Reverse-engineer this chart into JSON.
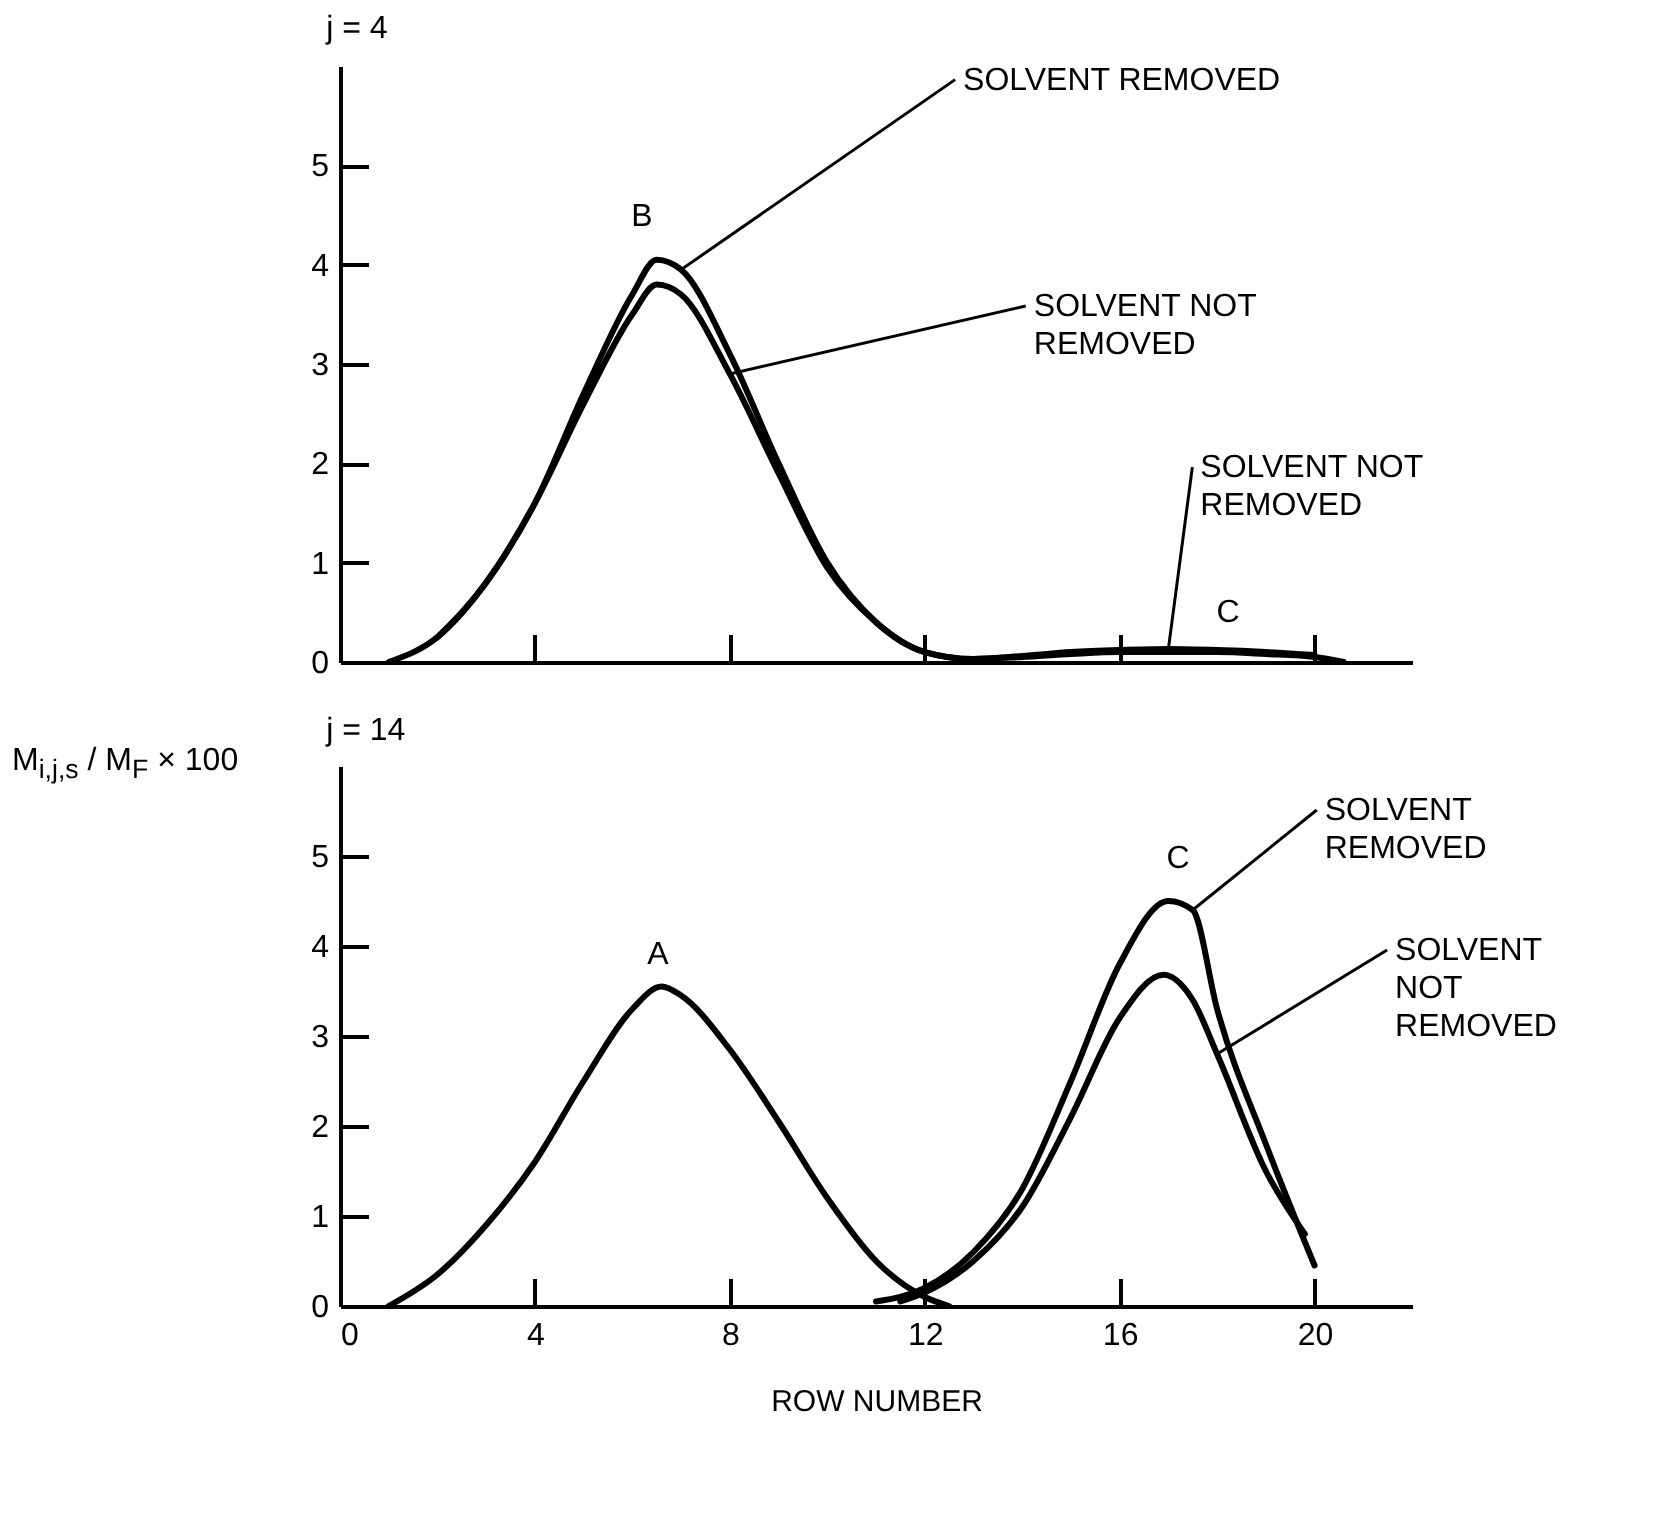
{
  "chart_data": [
    {
      "type": "line",
      "title": "j = 4",
      "ylabel": "M$_{i,j,s}$ / M$_{F}$ × 100",
      "xlim": [
        0,
        22
      ],
      "ylim": [
        0,
        6
      ],
      "xticks": [
        {
          "value": 4,
          "label": null
        },
        {
          "value": 8,
          "label": null
        },
        {
          "value": 12,
          "label": null
        },
        {
          "value": 16,
          "label": null
        },
        {
          "value": 20,
          "label": null
        }
      ],
      "yticks": [
        0,
        1,
        2,
        3,
        4,
        5
      ],
      "tick_labels": "y",
      "line_style": "solid",
      "marker": "none",
      "grid": false,
      "series": [
        {
          "color": "#000000",
          "x": [
            1,
            2,
            3,
            4,
            5,
            6,
            6.5,
            7,
            8,
            9,
            10,
            11,
            12,
            13,
            14,
            15,
            16,
            17,
            18,
            19,
            20,
            20.6
          ],
          "values": [
            0,
            0.25,
            0.8,
            1.6,
            2.7,
            3.7,
            4.05,
            3.95,
            3.1,
            2.0,
            1.0,
            0.4,
            0.1,
            0.03,
            0.05,
            0.08,
            0.1,
            0.1,
            0.1,
            0.08,
            0.05,
            0
          ]
        },
        {
          "color": "#000000",
          "x": [
            2,
            3,
            4,
            5,
            6,
            6.5,
            7,
            8,
            9,
            10,
            11,
            12,
            13,
            14,
            15,
            16,
            17,
            18,
            19,
            20
          ],
          "values": [
            0.25,
            0.8,
            1.6,
            2.6,
            3.5,
            3.8,
            3.7,
            2.9,
            1.9,
            0.95,
            0.4,
            0.1,
            0.03,
            0.06,
            0.1,
            0.12,
            0.13,
            0.12,
            0.1,
            0.07
          ]
        }
      ],
      "annotations": [
        {
          "text": "SOLVENT  REMOVED",
          "x": 7,
          "y": 3.95
        },
        {
          "text": "SOLVENT NOT\nREMOVED",
          "x": 8,
          "y": 2.9
        },
        {
          "text": "SOLVENT NOT\nREMOVED",
          "x": 17,
          "y": 0.13
        },
        "B",
        "C"
      ]
    },
    {
      "type": "line",
      "title": "j = 14",
      "xlabel": "ROW NUMBER",
      "xlim": [
        0,
        22
      ],
      "ylim": [
        0,
        6
      ],
      "xticks": [
        0,
        4,
        8,
        12,
        16,
        20
      ],
      "yticks": [
        0,
        1,
        2,
        3,
        4,
        5
      ],
      "line_style": "solid",
      "marker": "none",
      "grid": false,
      "series": [
        {
          "color": "#000000",
          "x": [
            1,
            2,
            3,
            4,
            5,
            6,
            6.6,
            7,
            8,
            9,
            10,
            11,
            12,
            12.5
          ],
          "values": [
            0,
            0.35,
            0.9,
            1.6,
            2.5,
            3.3,
            3.55,
            3.45,
            2.85,
            2.05,
            1.2,
            0.5,
            0.1,
            0
          ]
        },
        {
          "color": "#000000",
          "x": [
            11,
            12,
            13,
            14,
            15,
            16,
            17,
            17.5,
            18,
            19,
            20
          ],
          "values": [
            0.05,
            0.2,
            0.6,
            1.3,
            2.5,
            3.8,
            4.5,
            4.4,
            3.3,
            1.8,
            0.45
          ]
        },
        {
          "color": "#000000",
          "x": [
            11.5,
            12,
            13,
            14,
            15,
            16,
            16.9,
            17.5,
            18,
            19,
            19.8
          ],
          "values": [
            0.05,
            0.15,
            0.5,
            1.1,
            2.1,
            3.2,
            3.68,
            3.4,
            2.8,
            1.5,
            0.8
          ]
        }
      ],
      "annotations": [
        "A",
        "C",
        {
          "text": "SOLVENT\nREMOVED",
          "x": 17.5,
          "y": 4.4
        },
        {
          "text": "SOLVENT\nNOT\nREMOVED",
          "x": 18,
          "y": 2.8
        }
      ]
    }
  ]
}
